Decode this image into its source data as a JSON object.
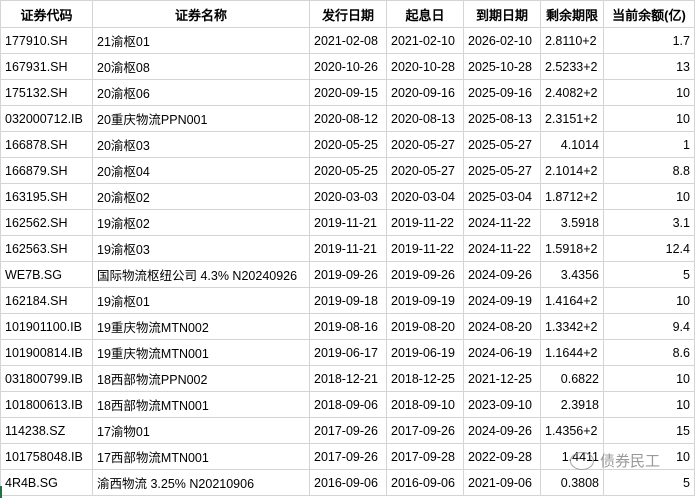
{
  "headers": [
    "证券代码",
    "证券名称",
    "发行日期",
    "起息日",
    "到期日期",
    "剩余期限",
    "当前余额(亿)"
  ],
  "rows": [
    [
      "177910.SH",
      "21渝枢01",
      "2021-02-08",
      "2021-02-10",
      "2026-02-10",
      "2.8110+2",
      "1.7"
    ],
    [
      "167931.SH",
      "20渝枢08",
      "2020-10-26",
      "2020-10-28",
      "2025-10-28",
      "2.5233+2",
      "13"
    ],
    [
      "175132.SH",
      "20渝枢06",
      "2020-09-15",
      "2020-09-16",
      "2025-09-16",
      "2.4082+2",
      "10"
    ],
    [
      "032000712.IB",
      "20重庆物流PPN001",
      "2020-08-12",
      "2020-08-13",
      "2025-08-13",
      "2.3151+2",
      "10"
    ],
    [
      "166878.SH",
      "20渝枢03",
      "2020-05-25",
      "2020-05-27",
      "2025-05-27",
      "4.1014",
      "1"
    ],
    [
      "166879.SH",
      "20渝枢04",
      "2020-05-25",
      "2020-05-27",
      "2025-05-27",
      "2.1014+2",
      "8.8"
    ],
    [
      "163195.SH",
      "20渝枢02",
      "2020-03-03",
      "2020-03-04",
      "2025-03-04",
      "1.8712+2",
      "10"
    ],
    [
      "162562.SH",
      "19渝枢02",
      "2019-11-21",
      "2019-11-22",
      "2024-11-22",
      "3.5918",
      "3.1"
    ],
    [
      "162563.SH",
      "19渝枢03",
      "2019-11-21",
      "2019-11-22",
      "2024-11-22",
      "1.5918+2",
      "12.4"
    ],
    [
      "WE7B.SG",
      "国际物流枢纽公司 4.3% N20240926",
      "2019-09-26",
      "2019-09-26",
      "2024-09-26",
      "3.4356",
      "5"
    ],
    [
      "162184.SH",
      "19渝枢01",
      "2019-09-18",
      "2019-09-19",
      "2024-09-19",
      "1.4164+2",
      "10"
    ],
    [
      "101901100.IB",
      "19重庆物流MTN002",
      "2019-08-16",
      "2019-08-20",
      "2024-08-20",
      "1.3342+2",
      "9.4"
    ],
    [
      "101900814.IB",
      "19重庆物流MTN001",
      "2019-06-17",
      "2019-06-19",
      "2024-06-19",
      "1.1644+2",
      "8.6"
    ],
    [
      "031800799.IB",
      "18西部物流PPN002",
      "2018-12-21",
      "2018-12-25",
      "2021-12-25",
      "0.6822",
      "10"
    ],
    [
      "101800613.IB",
      "18西部物流MTN001",
      "2018-09-06",
      "2018-09-10",
      "2023-09-10",
      "2.3918",
      "10"
    ],
    [
      "114238.SZ",
      "17渝物01",
      "2017-09-26",
      "2017-09-26",
      "2024-09-26",
      "1.4356+2",
      "15"
    ],
    [
      "101758048.IB",
      "17西部物流MTN001",
      "2017-09-26",
      "2017-09-28",
      "2022-09-28",
      "1.4411",
      "10"
    ],
    [
      "4R4B.SG",
      "渝西物流 3.25% N20210906",
      "2016-09-06",
      "2016-09-06",
      "2021-09-06",
      "0.3808",
      "5"
    ]
  ],
  "watermark": "债券民工"
}
